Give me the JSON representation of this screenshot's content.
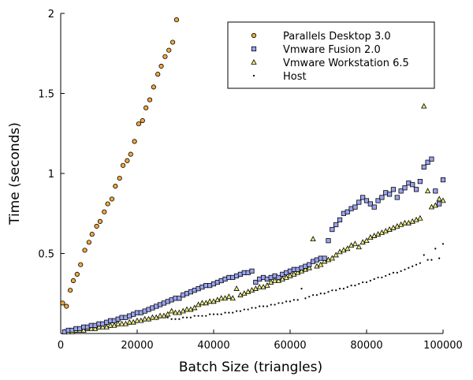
{
  "chart_data": {
    "type": "scatter",
    "title": "",
    "xlabel": "Batch Size (triangles)",
    "ylabel": "Time (seconds)",
    "xlim": [
      0,
      100000
    ],
    "ylim": [
      0,
      2
    ],
    "xticks": [
      0,
      20000,
      40000,
      60000,
      80000,
      100000
    ],
    "xtick_labels": [
      "0",
      "20000",
      "40000",
      "60000",
      "80000",
      "100000"
    ],
    "yticks": [
      0.5,
      1,
      1.5,
      2
    ],
    "ytick_labels": [
      "0.5",
      "1",
      "1.5",
      "2"
    ],
    "grid": false,
    "legend_position": "top-right",
    "colors": {
      "parallels": "#f4a93a",
      "fusion": "#9aa4f0",
      "workstation": "#eef07a",
      "host": "#000000",
      "stroke": "#000000"
    },
    "series": [
      {
        "name": "Parallels Desktop 3.0",
        "marker": "circle",
        "x": [
          500,
          1500,
          2500,
          3300,
          4300,
          5200,
          6300,
          7400,
          8200,
          9400,
          10300,
          11400,
          12300,
          13400,
          14300,
          15400,
          16300,
          17400,
          18300,
          19300,
          20400,
          21400,
          22300,
          23300,
          24300,
          25400,
          26300,
          27300,
          28300,
          29300,
          30300
        ],
        "y": [
          0.19,
          0.17,
          0.27,
          0.33,
          0.37,
          0.43,
          0.52,
          0.57,
          0.62,
          0.67,
          0.7,
          0.76,
          0.81,
          0.84,
          0.92,
          0.97,
          1.05,
          1.08,
          1.12,
          1.2,
          1.31,
          1.33,
          1.41,
          1.46,
          1.54,
          1.62,
          1.67,
          1.73,
          1.77,
          1.82,
          1.96
        ]
      },
      {
        "name": "Vmware Fusion 2.0",
        "marker": "square",
        "x": [
          1000,
          2000,
          3000,
          4000,
          5000,
          6000,
          7000,
          8000,
          9000,
          10000,
          11000,
          12000,
          13000,
          14000,
          15000,
          16000,
          17000,
          18000,
          19000,
          20000,
          21000,
          22000,
          23000,
          24000,
          25000,
          26000,
          27000,
          28000,
          29000,
          30000,
          31000,
          32000,
          33000,
          34000,
          35000,
          36000,
          37000,
          38000,
          39000,
          40000,
          41000,
          42000,
          43000,
          44000,
          45000,
          46000,
          47000,
          48000,
          49000,
          50000,
          51000,
          52000,
          53000,
          54000,
          55000,
          56000,
          57000,
          58000,
          59000,
          60000,
          61000,
          62000,
          63000,
          64000,
          65000,
          66000,
          67000,
          68000,
          69000,
          70000,
          71000,
          72000,
          73000,
          74000,
          75000,
          76000,
          77000,
          78000,
          79000,
          80000,
          81000,
          82000,
          83000,
          84000,
          85000,
          86000,
          87000,
          88000,
          89000,
          90000,
          91000,
          92000,
          93000,
          94000,
          95000,
          96000,
          97000,
          98000,
          99000,
          100000
        ],
        "y": [
          0.01,
          0.02,
          0.02,
          0.03,
          0.03,
          0.04,
          0.04,
          0.05,
          0.05,
          0.06,
          0.06,
          0.07,
          0.08,
          0.08,
          0.09,
          0.1,
          0.1,
          0.11,
          0.12,
          0.13,
          0.13,
          0.14,
          0.15,
          0.16,
          0.17,
          0.18,
          0.19,
          0.2,
          0.21,
          0.22,
          0.22,
          0.24,
          0.25,
          0.26,
          0.27,
          0.28,
          0.29,
          0.3,
          0.3,
          0.31,
          0.32,
          0.33,
          0.34,
          0.35,
          0.35,
          0.36,
          0.37,
          0.38,
          0.38,
          0.39,
          0.32,
          0.34,
          0.35,
          0.34,
          0.35,
          0.36,
          0.35,
          0.37,
          0.38,
          0.39,
          0.4,
          0.4,
          0.41,
          0.42,
          0.43,
          0.45,
          0.46,
          0.47,
          0.47,
          0.58,
          0.65,
          0.68,
          0.71,
          0.75,
          0.76,
          0.78,
          0.79,
          0.82,
          0.85,
          0.83,
          0.81,
          0.79,
          0.83,
          0.85,
          0.88,
          0.87,
          0.9,
          0.85,
          0.89,
          0.91,
          0.94,
          0.93,
          0.9,
          0.95,
          1.04,
          1.07,
          1.09,
          0.89,
          0.81,
          0.96
        ]
      },
      {
        "name": "Vmware Workstation 6.5",
        "marker": "triangle",
        "x": [
          1000,
          2000,
          3000,
          4000,
          5000,
          6000,
          7000,
          8000,
          9000,
          10000,
          11000,
          12000,
          13000,
          14000,
          15000,
          16000,
          17000,
          18000,
          19000,
          20000,
          21000,
          22000,
          23000,
          24000,
          25000,
          26000,
          27000,
          28000,
          29000,
          30000,
          31000,
          32000,
          33000,
          34000,
          35000,
          36000,
          37000,
          38000,
          39000,
          40000,
          41000,
          42000,
          43000,
          44000,
          45000,
          46000,
          47000,
          48000,
          49000,
          50000,
          51000,
          52000,
          53000,
          54000,
          55000,
          56000,
          57000,
          58000,
          59000,
          60000,
          61000,
          62000,
          63000,
          64000,
          65000,
          66000,
          67000,
          68000,
          69000,
          70000,
          71000,
          72000,
          73000,
          74000,
          75000,
          76000,
          77000,
          78000,
          79000,
          80000,
          81000,
          82000,
          83000,
          84000,
          85000,
          86000,
          87000,
          88000,
          89000,
          90000,
          91000,
          92000,
          93000,
          94000,
          95000,
          96000,
          97000,
          98000,
          99000,
          100000
        ],
        "y": [
          0.01,
          0.01,
          0.01,
          0.02,
          0.02,
          0.02,
          0.03,
          0.03,
          0.03,
          0.04,
          0.04,
          0.04,
          0.05,
          0.05,
          0.06,
          0.06,
          0.06,
          0.07,
          0.07,
          0.08,
          0.08,
          0.09,
          0.09,
          0.1,
          0.1,
          0.11,
          0.11,
          0.12,
          0.14,
          0.13,
          0.13,
          0.14,
          0.15,
          0.15,
          0.16,
          0.18,
          0.19,
          0.19,
          0.2,
          0.2,
          0.21,
          0.22,
          0.22,
          0.23,
          0.22,
          0.28,
          0.24,
          0.25,
          0.26,
          0.27,
          0.28,
          0.29,
          0.29,
          0.3,
          0.32,
          0.33,
          0.33,
          0.34,
          0.35,
          0.36,
          0.37,
          0.38,
          0.39,
          0.4,
          0.41,
          0.59,
          0.42,
          0.43,
          0.45,
          0.46,
          0.47,
          0.49,
          0.51,
          0.52,
          0.53,
          0.55,
          0.56,
          0.54,
          0.57,
          0.58,
          0.6,
          0.61,
          0.62,
          0.63,
          0.64,
          0.65,
          0.66,
          0.67,
          0.68,
          0.69,
          0.69,
          0.7,
          0.71,
          0.72,
          1.42,
          0.89,
          0.79,
          0.8,
          0.84,
          0.83
        ]
      },
      {
        "name": "Host",
        "marker": "dot",
        "x": [
          1000,
          2000,
          3000,
          4000,
          5000,
          6000,
          7000,
          8000,
          9000,
          10000,
          11000,
          12000,
          13000,
          14000,
          15000,
          16000,
          17000,
          18000,
          19000,
          20000,
          21000,
          22000,
          23000,
          24000,
          25000,
          26000,
          27000,
          28000,
          29000,
          30000,
          31000,
          32000,
          33000,
          34000,
          35000,
          36000,
          37000,
          38000,
          39000,
          40000,
          41000,
          42000,
          43000,
          44000,
          45000,
          46000,
          47000,
          48000,
          49000,
          50000,
          51000,
          52000,
          53000,
          54000,
          55000,
          56000,
          57000,
          58000,
          59000,
          60000,
          61000,
          62000,
          63000,
          64000,
          65000,
          66000,
          67000,
          68000,
          69000,
          70000,
          71000,
          72000,
          73000,
          74000,
          75000,
          76000,
          77000,
          78000,
          79000,
          80000,
          81000,
          82000,
          83000,
          84000,
          85000,
          86000,
          87000,
          88000,
          89000,
          90000,
          91000,
          92000,
          93000,
          94000,
          95000,
          96000,
          97000,
          98000,
          99000,
          100000
        ],
        "y": [
          0.01,
          0.01,
          0.01,
          0.01,
          0.02,
          0.02,
          0.02,
          0.03,
          0.03,
          0.03,
          0.04,
          0.04,
          0.04,
          0.05,
          0.05,
          0.06,
          0.06,
          0.06,
          0.07,
          0.07,
          0.08,
          0.08,
          0.08,
          0.09,
          0.09,
          0.1,
          0.1,
          0.1,
          0.09,
          0.09,
          0.09,
          0.1,
          0.1,
          0.1,
          0.11,
          0.11,
          0.11,
          0.11,
          0.12,
          0.12,
          0.12,
          0.12,
          0.13,
          0.13,
          0.13,
          0.14,
          0.14,
          0.15,
          0.15,
          0.16,
          0.16,
          0.17,
          0.17,
          0.17,
          0.18,
          0.18,
          0.19,
          0.19,
          0.2,
          0.2,
          0.21,
          0.21,
          0.28,
          0.22,
          0.23,
          0.24,
          0.24,
          0.25,
          0.25,
          0.26,
          0.27,
          0.27,
          0.28,
          0.28,
          0.29,
          0.3,
          0.3,
          0.31,
          0.32,
          0.32,
          0.33,
          0.34,
          0.35,
          0.35,
          0.36,
          0.37,
          0.38,
          0.38,
          0.39,
          0.4,
          0.41,
          0.42,
          0.43,
          0.44,
          0.49,
          0.46,
          0.46,
          0.53,
          0.47,
          0.56
        ]
      }
    ]
  }
}
